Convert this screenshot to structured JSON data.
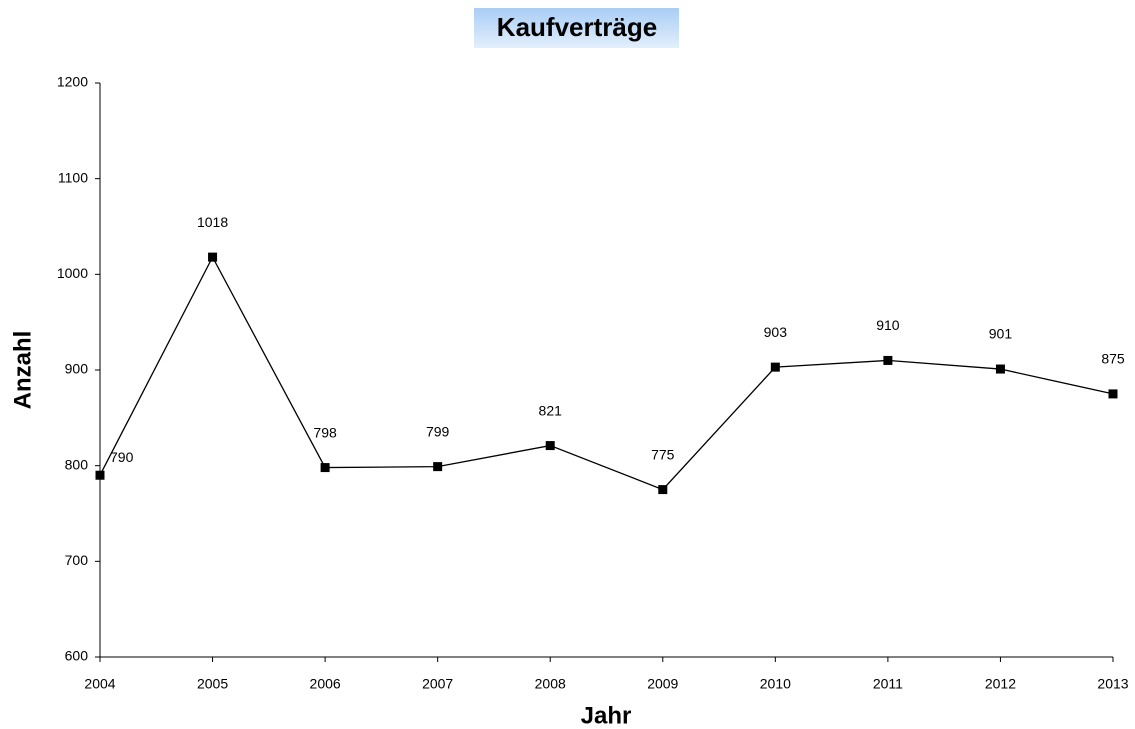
{
  "chart_data": {
    "type": "line",
    "title": "Kaufverträge",
    "xlabel": "Jahr",
    "ylabel": "Anzahl",
    "x": [
      2004,
      2005,
      2006,
      2007,
      2008,
      2009,
      2010,
      2011,
      2012,
      2013
    ],
    "values": [
      790,
      1018,
      798,
      799,
      821,
      775,
      903,
      910,
      901,
      875
    ],
    "color": "#000000",
    "xlim": [
      2004,
      2013
    ],
    "xticks": [
      2004,
      2005,
      2006,
      2007,
      2008,
      2009,
      2010,
      2011,
      2012,
      2013
    ],
    "ylim": [
      600,
      1200
    ],
    "yticks": [
      600,
      700,
      800,
      900,
      1000,
      1100,
      1200
    ],
    "grid": false
  }
}
